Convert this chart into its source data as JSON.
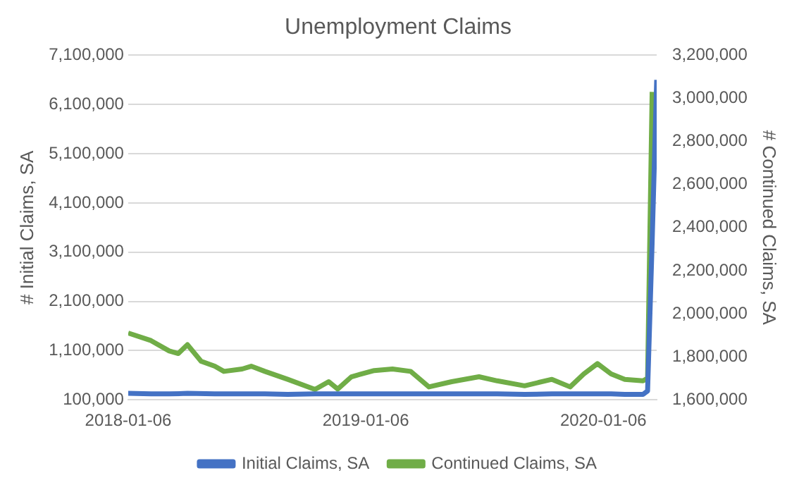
{
  "chart_data": {
    "type": "line",
    "title": "Unemployment Claims",
    "ylabel": "# Initial Claims, SA",
    "y2label": "# Continued Claims, SA",
    "series": [
      {
        "name": "Initial Claims, SA",
        "color": "#4472c4",
        "x": [
          "2018-01-06",
          "2018-02-10",
          "2018-03-10",
          "2018-04-07",
          "2018-05-19",
          "2018-06-30",
          "2018-08-04",
          "2018-09-08",
          "2018-10-20",
          "2018-11-24",
          "2019-01-19",
          "2019-03-16",
          "2019-05-18",
          "2019-07-27",
          "2019-09-07",
          "2019-10-19",
          "2019-12-07",
          "2020-01-18",
          "2020-02-08",
          "2020-03-07",
          "2020-03-14",
          "2020-03-21",
          "2020-03-28"
        ],
        "values": [
          230000,
          220000,
          220000,
          230000,
          220000,
          220000,
          220000,
          210000,
          220000,
          220000,
          220000,
          220000,
          220000,
          220000,
          210000,
          220000,
          220000,
          220000,
          210000,
          210000,
          280000,
          3300000,
          6600000
        ]
      },
      {
        "name": "Continued Claims, SA",
        "color": "#70ad47",
        "axis": "y2",
        "x": [
          "2018-01-06",
          "2018-02-10",
          "2018-03-10",
          "2018-03-24",
          "2018-04-07",
          "2018-04-28",
          "2018-05-19",
          "2018-06-02",
          "2018-06-30",
          "2018-07-14",
          "2018-08-04",
          "2018-09-08",
          "2018-10-20",
          "2018-11-10",
          "2018-11-24",
          "2018-12-15",
          "2019-01-19",
          "2019-02-16",
          "2019-03-16",
          "2019-04-13",
          "2019-05-18",
          "2019-06-29",
          "2019-07-27",
          "2019-09-07",
          "2019-10-19",
          "2019-11-16",
          "2019-12-07",
          "2019-12-28",
          "2020-01-18",
          "2020-02-08",
          "2020-03-07",
          "2020-03-14",
          "2020-03-21"
        ],
        "values": [
          1910000,
          1875000,
          1827000,
          1815000,
          1856000,
          1779000,
          1756000,
          1732000,
          1743000,
          1756000,
          1732000,
          1695000,
          1648000,
          1684000,
          1650000,
          1707000,
          1736000,
          1743000,
          1732000,
          1660000,
          1684000,
          1707000,
          1688000,
          1665000,
          1695000,
          1660000,
          1720000,
          1768000,
          1720000,
          1695000,
          1688000,
          1700000,
          3030000
        ]
      }
    ],
    "xlim": [
      "2018-01-06",
      "2020-03-28"
    ],
    "xticks": [
      {
        "value": "2018-01-06",
        "label": "2018-01-06"
      },
      {
        "value": "2019-01-06",
        "label": "2019-01-06"
      },
      {
        "value": "2020-01-06",
        "label": "2020-01-06"
      }
    ],
    "ylim": [
      100000,
      7100000
    ],
    "yticks": [
      {
        "value": 100000,
        "label": "100,000"
      },
      {
        "value": 1100000,
        "label": "1,100,000"
      },
      {
        "value": 2100000,
        "label": "2,100,000"
      },
      {
        "value": 3100000,
        "label": "3,100,000"
      },
      {
        "value": 4100000,
        "label": "4,100,000"
      },
      {
        "value": 5100000,
        "label": "5,100,000"
      },
      {
        "value": 6100000,
        "label": "6,100,000"
      },
      {
        "value": 7100000,
        "label": "7,100,000"
      }
    ],
    "y2lim": [
      1600000,
      3200000
    ],
    "y2ticks": [
      {
        "value": 1600000,
        "label": "1,600,000"
      },
      {
        "value": 1800000,
        "label": "1,800,000"
      },
      {
        "value": 2000000,
        "label": "2,000,000"
      },
      {
        "value": 2200000,
        "label": "2,200,000"
      },
      {
        "value": 2400000,
        "label": "2,400,000"
      },
      {
        "value": 2600000,
        "label": "2,600,000"
      },
      {
        "value": 2800000,
        "label": "2,800,000"
      },
      {
        "value": 3000000,
        "label": "3,000,000"
      },
      {
        "value": 3200000,
        "label": "3,200,000"
      }
    ],
    "grid": "y",
    "legend": "bottom",
    "marker": "none",
    "line_style": "solid"
  }
}
